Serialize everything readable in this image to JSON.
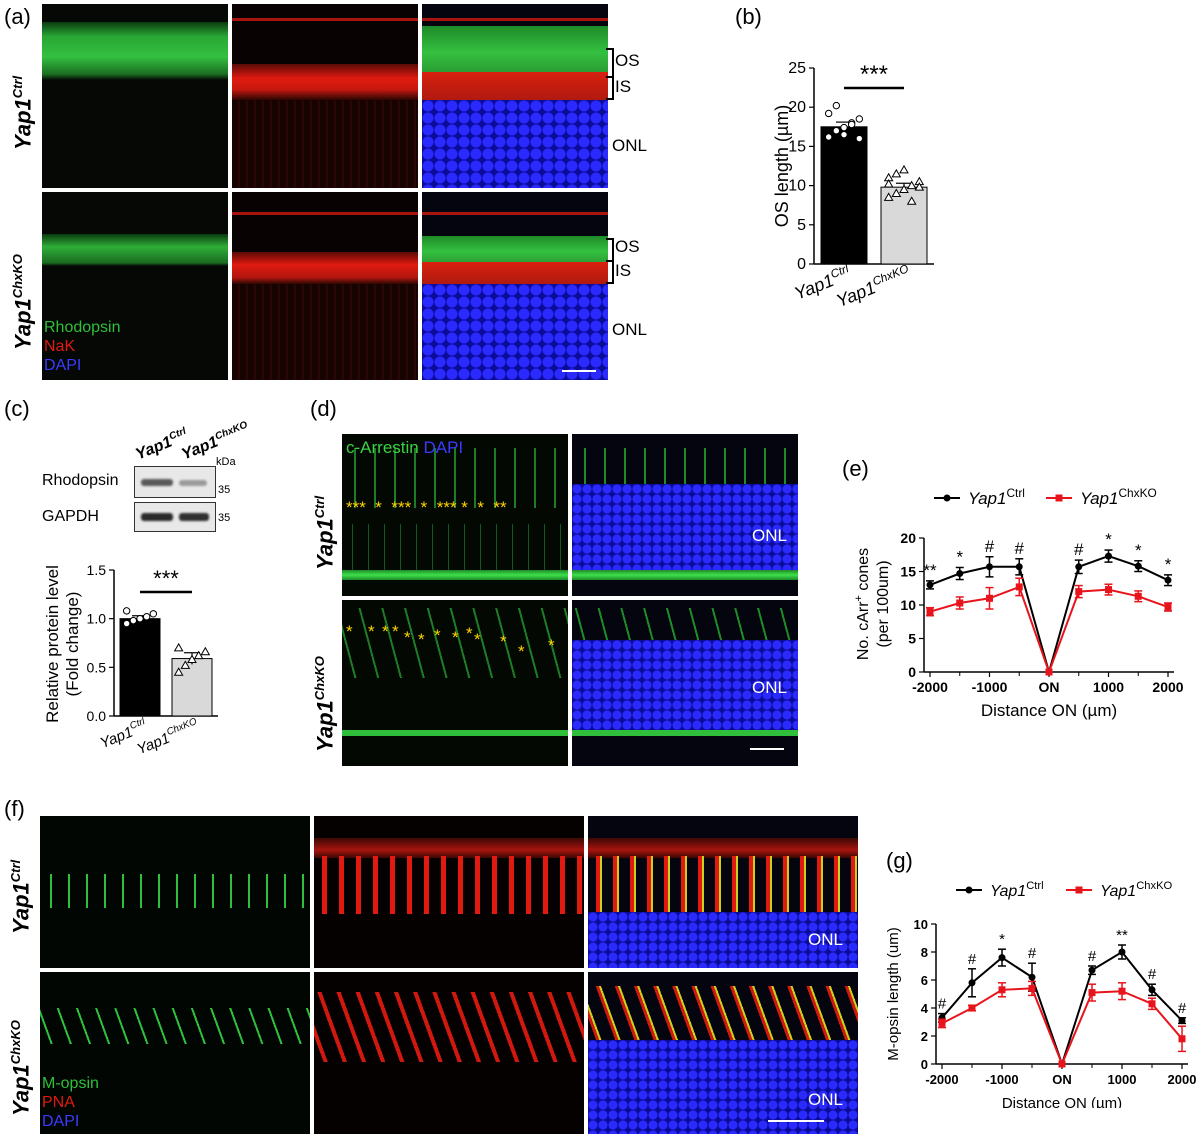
{
  "panels": {
    "a": {
      "label": "(a)",
      "row_labels": [
        {
          "gene": "Yap1",
          "sup": "Ctrl"
        },
        {
          "gene": "Yap1",
          "sup": "ChxKO"
        }
      ],
      "layers": [
        "OS",
        "IS",
        "ONL"
      ],
      "legend": [
        "Rhodopsin",
        "NaK",
        "DAPI"
      ],
      "colors": {
        "green": "#2fbf3a",
        "red": "#e01a10",
        "blue": "#1a1adf"
      }
    },
    "b": {
      "label": "(b)"
    },
    "c": {
      "label": "(c)",
      "blot_labels": [
        "Rhodopsin",
        "GAPDH"
      ],
      "lanes": [
        {
          "gene": "Yap1",
          "sup": "Ctrl"
        },
        {
          "gene": "Yap1",
          "sup": "ChxKO"
        }
      ],
      "kda": "kDa",
      "markers": [
        "35",
        "35"
      ]
    },
    "d": {
      "label": "(d)",
      "stain": [
        "c-Arrestin",
        "DAPI"
      ],
      "row_labels": [
        {
          "gene": "Yap1",
          "sup": "Ctrl"
        },
        {
          "gene": "Yap1",
          "sup": "ChxKO"
        }
      ],
      "onl": "ONL",
      "stars_top": "***  *  ***  *  *** *  *  **",
      "star": "*"
    },
    "e": {
      "label": "(e)"
    },
    "f": {
      "label": "(f)",
      "row_labels": [
        {
          "gene": "Yap1",
          "sup": "Ctrl"
        },
        {
          "gene": "Yap1",
          "sup": "ChxKO"
        }
      ],
      "onl": "ONL",
      "legend": [
        "M-opsin",
        "PNA",
        "DAPI"
      ]
    },
    "g": {
      "label": "(g)"
    }
  },
  "chart_data": [
    {
      "id": "b",
      "type": "bar",
      "categories": [
        {
          "gene": "Yap1",
          "sup": "Ctrl"
        },
        {
          "gene": "Yap1",
          "sup": "ChxKO"
        }
      ],
      "values": [
        17.5,
        9.8
      ],
      "errors": [
        0.6,
        0.5
      ],
      "points": [
        [
          16.2,
          17.0,
          17.4,
          18.0,
          18.5,
          19.2,
          20.2,
          16.5,
          17.8,
          16.0
        ],
        [
          8.5,
          9.0,
          9.5,
          10.0,
          10.5,
          11.0,
          11.5,
          12.0,
          8.0,
          9.8,
          10.2
        ]
      ],
      "ylabel": "OS length (µm)",
      "ylim": [
        0,
        25
      ],
      "yticks": [
        0,
        5,
        10,
        15,
        20,
        25
      ],
      "significance": "***",
      "colors": [
        "#000000",
        "#d9d9d9"
      ]
    },
    {
      "id": "c",
      "type": "bar",
      "categories": [
        {
          "gene": "Yap1",
          "sup": "Ctrl"
        },
        {
          "gene": "Yap1",
          "sup": "ChxKO"
        }
      ],
      "values": [
        1.0,
        0.59
      ],
      "errors": [
        0.03,
        0.06
      ],
      "points": [
        [
          0.95,
          0.98,
          1.0,
          1.02,
          1.05,
          1.08
        ],
        [
          0.45,
          0.52,
          0.58,
          0.62,
          0.66,
          0.7
        ]
      ],
      "ylabel": "Relative protein level (Fold change)",
      "ylabel_lines": [
        "Relative protein  level",
        "(Fold change)"
      ],
      "ylim": [
        0,
        1.5
      ],
      "yticks": [
        "0.0",
        "0.5",
        "1.0",
        "1.5"
      ],
      "significance": "***",
      "colors": [
        "#000000",
        "#d9d9d9"
      ]
    },
    {
      "id": "e",
      "type": "line",
      "x_labels": [
        "-2000",
        "-1000",
        "ON",
        "1000",
        "2000"
      ],
      "x": [
        -2000,
        -1500,
        -1000,
        -500,
        0,
        500,
        1000,
        1500,
        2000
      ],
      "series": [
        {
          "name": "Yap1",
          "sup": "Ctrl",
          "color": "#000000",
          "values": [
            13.0,
            14.7,
            15.7,
            15.7,
            0,
            15.7,
            17.3,
            15.8,
            13.7
          ],
          "errors": [
            0.6,
            0.9,
            1.5,
            1.2,
            0,
            1.0,
            0.9,
            0.8,
            0.8
          ]
        },
        {
          "name": "Yap1",
          "sup": "ChxKO",
          "color": "#e8141c",
          "values": [
            9.0,
            10.3,
            11.0,
            12.7,
            0,
            12.0,
            12.3,
            11.3,
            9.7
          ],
          "errors": [
            0.6,
            0.9,
            1.6,
            1.3,
            0,
            0.9,
            0.8,
            0.8,
            0.6
          ]
        }
      ],
      "sig": [
        "**",
        "*",
        "#",
        "#",
        "",
        "#",
        "*",
        "*",
        "*"
      ],
      "ylabel_lines": [
        "No. cArr+ cones",
        "(per 100um)"
      ],
      "ylabel_main": "No. cArr",
      "ylabel_sup": "+",
      "ylabel_rest": " cones",
      "ylabel_line2": "(per 100um)",
      "xlabel": "Distance ON (µm)",
      "ylim": [
        0,
        20
      ],
      "yticks": [
        0,
        5,
        10,
        15,
        20
      ]
    },
    {
      "id": "g",
      "type": "line",
      "x_labels": [
        "-2000",
        "-1000",
        "ON",
        "1000",
        "2000"
      ],
      "x": [
        -2000,
        -1500,
        -1000,
        -500,
        0,
        500,
        1000,
        1500,
        2000
      ],
      "series": [
        {
          "name": "Yap1",
          "sup": "Ctrl",
          "color": "#000000",
          "values": [
            3.3,
            5.8,
            7.6,
            6.2,
            0,
            6.7,
            8.0,
            5.3,
            3.1
          ],
          "errors": [
            0.3,
            1.0,
            0.6,
            1.0,
            0,
            0.3,
            0.5,
            0.4,
            0.2
          ]
        },
        {
          "name": "Yap1",
          "sup": "ChxKO",
          "color": "#e8141c",
          "values": [
            2.9,
            4.0,
            5.3,
            5.4,
            0,
            5.1,
            5.2,
            4.3,
            1.8
          ],
          "errors": [
            0.3,
            0.2,
            0.5,
            0.5,
            0,
            0.6,
            0.6,
            0.4,
            0.9
          ]
        }
      ],
      "sig": [
        "#",
        "#",
        "*",
        "#",
        "",
        "#",
        "**",
        "#",
        "#"
      ],
      "ylabel": "M-opsin length (um)",
      "xlabel": "Distance ON (µm)",
      "ylim": [
        0,
        10
      ],
      "yticks": [
        0,
        2,
        4,
        6,
        8,
        10
      ]
    }
  ]
}
